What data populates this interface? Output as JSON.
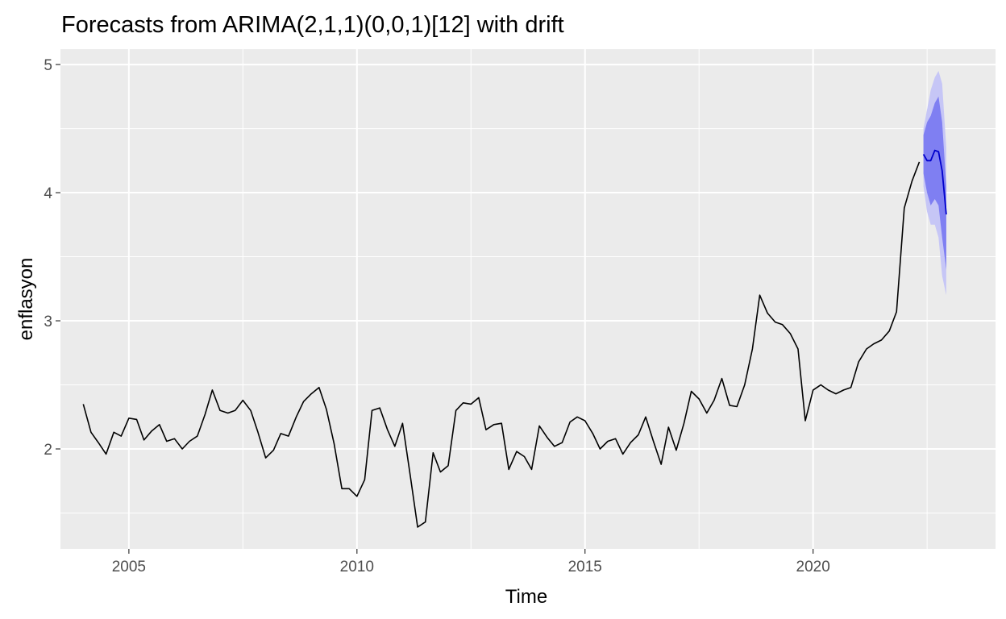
{
  "chart_data": {
    "type": "line",
    "title": "Forecasts from ARIMA(2,1,1)(0,0,1)[12] with drift",
    "xlabel": "Time",
    "ylabel": "enflasyon",
    "xlim": [
      2003.5,
      2024.0
    ],
    "ylim": [
      1.22,
      5.12
    ],
    "x_ticks": [
      2005,
      2010,
      2015,
      2020
    ],
    "x_tick_labels": [
      "2005",
      "2010",
      "2015",
      "2020"
    ],
    "y_ticks": [
      2,
      3,
      4,
      5
    ],
    "y_tick_labels": [
      "2",
      "3",
      "4",
      "5"
    ],
    "grid": true,
    "legend": "none",
    "colors": {
      "panel": "#ebebeb",
      "grid": "#ffffff",
      "history_line": "#000000",
      "forecast_line": "#0000cc",
      "band_80": "#7f7ff2",
      "band_95": "#c6c6f6"
    },
    "history": {
      "x": [
        2004.0,
        2004.17,
        2004.33,
        2004.5,
        2004.67,
        2004.83,
        2005.0,
        2005.17,
        2005.33,
        2005.5,
        2005.67,
        2005.83,
        2006.0,
        2006.17,
        2006.33,
        2006.5,
        2006.67,
        2006.83,
        2007.0,
        2007.17,
        2007.33,
        2007.5,
        2007.67,
        2007.83,
        2008.0,
        2008.17,
        2008.33,
        2008.5,
        2008.67,
        2008.83,
        2009.0,
        2009.17,
        2009.33,
        2009.5,
        2009.67,
        2009.83,
        2010.0,
        2010.17,
        2010.33,
        2010.5,
        2010.67,
        2010.83,
        2011.0,
        2011.17,
        2011.33,
        2011.5,
        2011.67,
        2011.83,
        2012.0,
        2012.17,
        2012.33,
        2012.5,
        2012.67,
        2012.83,
        2013.0,
        2013.17,
        2013.33,
        2013.5,
        2013.67,
        2013.83,
        2014.0,
        2014.17,
        2014.33,
        2014.5,
        2014.67,
        2014.83,
        2015.0,
        2015.17,
        2015.33,
        2015.5,
        2015.67,
        2015.83,
        2016.0,
        2016.17,
        2016.33,
        2016.5,
        2016.67,
        2016.83,
        2017.0,
        2017.17,
        2017.33,
        2017.5,
        2017.67,
        2017.83,
        2018.0,
        2018.17,
        2018.33,
        2018.5,
        2018.67,
        2018.83,
        2019.0,
        2019.17,
        2019.33,
        2019.5,
        2019.67,
        2019.83,
        2020.0,
        2020.17,
        2020.33,
        2020.5,
        2020.67,
        2020.83,
        2021.0,
        2021.17,
        2021.33,
        2021.5,
        2021.67,
        2021.83,
        2022.0,
        2022.17,
        2022.33
      ],
      "y": [
        2.35,
        2.13,
        2.05,
        1.96,
        2.13,
        2.1,
        2.24,
        2.23,
        2.07,
        2.14,
        2.19,
        2.06,
        2.08,
        2.0,
        2.06,
        2.1,
        2.27,
        2.46,
        2.3,
        2.28,
        2.3,
        2.38,
        2.3,
        2.13,
        1.93,
        1.99,
        2.12,
        2.1,
        2.25,
        2.37,
        2.43,
        2.48,
        2.31,
        2.04,
        1.69,
        1.69,
        1.63,
        1.76,
        2.3,
        2.32,
        2.15,
        2.02,
        2.2,
        1.79,
        1.39,
        1.43,
        1.97,
        1.82,
        1.87,
        2.3,
        2.36,
        2.35,
        2.4,
        2.15,
        2.19,
        2.2,
        1.84,
        1.98,
        1.94,
        1.84,
        2.18,
        2.09,
        2.02,
        2.05,
        2.21,
        2.25,
        2.22,
        2.12,
        2.0,
        2.06,
        2.08,
        1.96,
        2.05,
        2.11,
        2.25,
        2.06,
        1.88,
        2.17,
        1.99,
        2.2,
        2.45,
        2.39,
        2.28,
        2.38,
        2.55,
        2.34,
        2.33,
        2.5,
        2.78,
        3.2,
        3.06,
        2.99,
        2.97,
        2.9,
        2.78,
        2.22,
        2.46,
        2.5,
        2.46,
        2.43,
        2.46,
        2.48,
        2.68,
        2.78,
        2.82,
        2.85,
        2.92,
        3.07,
        3.88,
        4.09,
        4.24
      ]
    },
    "forecast": {
      "x": [
        2022.42,
        2022.5,
        2022.58,
        2022.67,
        2022.75,
        2022.83,
        2022.92
      ],
      "mean": [
        4.3,
        4.25,
        4.25,
        4.33,
        4.32,
        4.17,
        3.83
      ],
      "lo80": [
        4.15,
        4.0,
        3.9,
        3.95,
        3.9,
        3.65,
        3.4
      ],
      "hi80": [
        4.45,
        4.55,
        4.6,
        4.7,
        4.75,
        4.55,
        4.05
      ],
      "lo95": [
        4.05,
        3.85,
        3.75,
        3.75,
        3.65,
        3.35,
        3.2
      ],
      "hi95": [
        4.5,
        4.65,
        4.8,
        4.9,
        4.95,
        4.85,
        4.35
      ]
    }
  }
}
